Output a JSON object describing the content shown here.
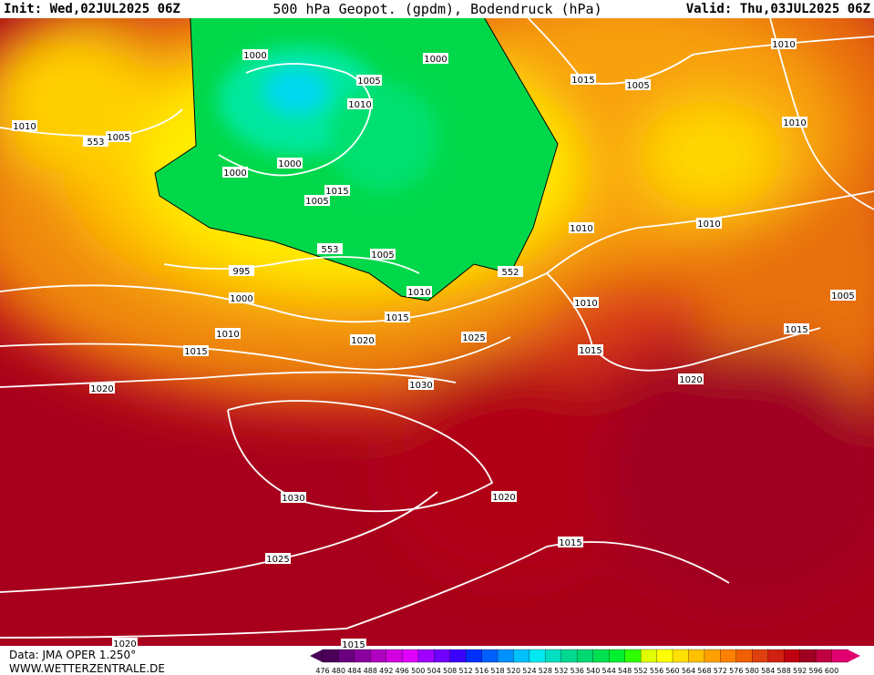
{
  "header": {
    "init": "Init: Wed,02JUL2025 06Z",
    "title": "500 hPa Geopot. (gpdm), Bodendruck (hPa)",
    "valid": "Valid: Thu,03JUL2025 06Z"
  },
  "map": {
    "isobar_labels": [
      "1000",
      "1000",
      "1005",
      "1010",
      "1005",
      "1010",
      "553",
      "1000",
      "1000",
      "1005",
      "1015",
      "1005",
      "553",
      "552",
      "995",
      "1000",
      "1010",
      "1015",
      "1010",
      "1020",
      "1025",
      "1015",
      "1030",
      "1020",
      "1010",
      "1010",
      "1015",
      "1020",
      "1030",
      "1020",
      "1015",
      "1025",
      "1020",
      "1015",
      "1010",
      "1015",
      "1005",
      "1010",
      "1010",
      "1005",
      "1015"
    ]
  },
  "legend": {
    "labels": [
      "476",
      "480",
      "484",
      "488",
      "492",
      "496",
      "500",
      "504",
      "508",
      "512",
      "516",
      "518",
      "520",
      "524",
      "528",
      "532",
      "536",
      "540",
      "544",
      "548",
      "552",
      "556",
      "560",
      "564",
      "568",
      "572",
      "576",
      "580",
      "584",
      "588",
      "592",
      "596",
      "600"
    ],
    "colors": [
      "#4b0059",
      "#6a007f",
      "#8b00a0",
      "#b000c0",
      "#d000e0",
      "#e000ff",
      "#a000ff",
      "#7000ff",
      "#3c00ff",
      "#0030ff",
      "#0060ff",
      "#0090ff",
      "#00c0ff",
      "#00e8f0",
      "#00e0c0",
      "#00d890",
      "#00d870",
      "#00e050",
      "#00f030",
      "#30ff00",
      "#e0ff00",
      "#ffff00",
      "#ffe000",
      "#ffc000",
      "#ffa000",
      "#ff8000",
      "#f06000",
      "#e04010",
      "#d02010",
      "#c00010",
      "#a00020",
      "#c00040",
      "#e00070"
    ]
  },
  "footer": {
    "data": "Data: JMA OPER 1.250°",
    "site": "WWW.WETTERZENTRALE.DE"
  }
}
